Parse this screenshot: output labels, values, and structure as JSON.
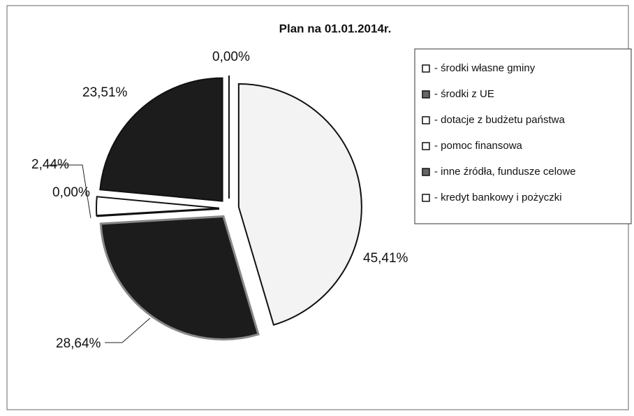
{
  "chart_data": {
    "type": "pie",
    "title": "Plan na 01.01.2014r.",
    "categories": [
      "- środki własne gminy",
      "- środki z UE",
      "- dotacje z budżetu państwa",
      "- pomoc finansowa",
      "- inne źródła, fundusze celowe",
      "- kredyt bankowy i pożyczki"
    ],
    "values": [
      45.41,
      28.64,
      0.0,
      2.44,
      23.51,
      0.0
    ],
    "value_labels": [
      "45,41%",
      "28,64%",
      "0,00%",
      "2,44%",
      "23,51%",
      "0,00%"
    ],
    "colors": [
      "#f3f3f3",
      "#1c1c1c",
      "#ffffff",
      "#ffffff",
      "#1c1c1c",
      "#ffffff"
    ],
    "legend": "right"
  }
}
